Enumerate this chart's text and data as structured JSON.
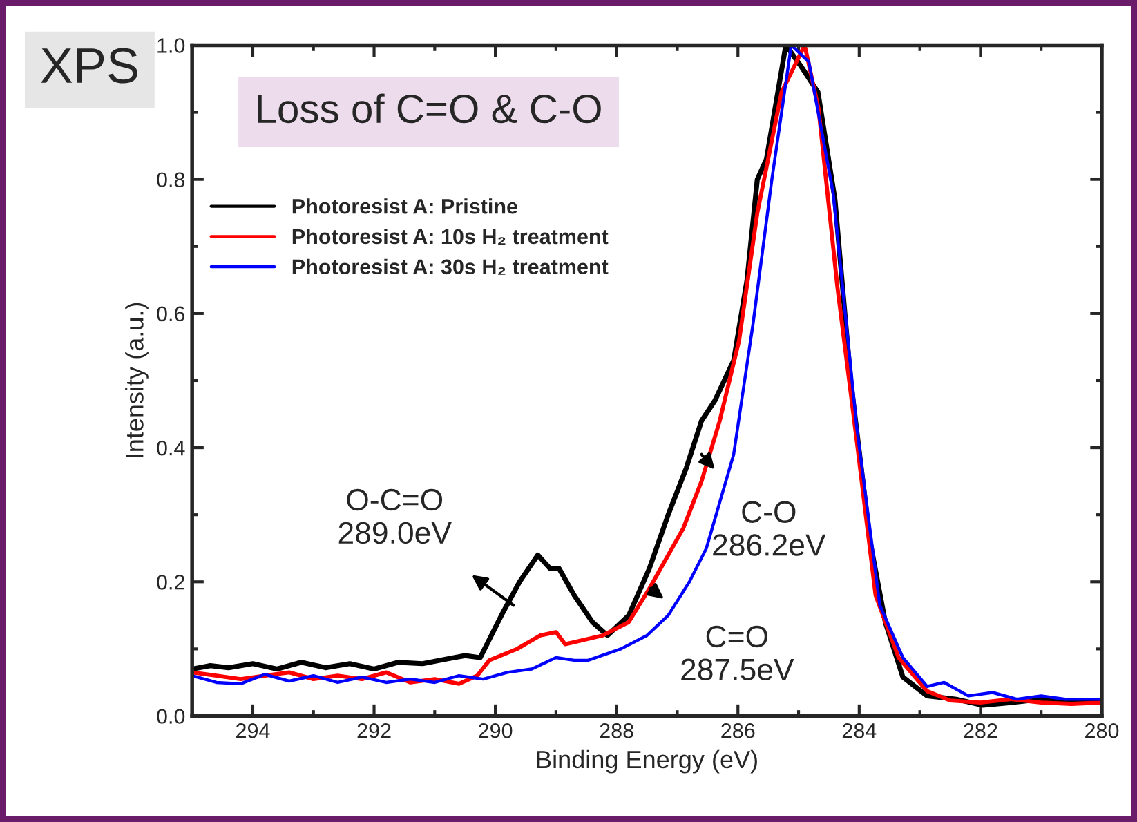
{
  "chart_data": {
    "type": "line",
    "title": "Loss of C=O & C-O",
    "xlabel": "Binding Energy (eV)",
    "ylabel": "Intensity (a.u.)",
    "annotations": [
      "XPS",
      {
        "text": "O-C=O\n289.0eV",
        "x": 289.7,
        "y": 0.165
      },
      {
        "text": "C-O\n286.2eV",
        "x": 286.6,
        "y": 0.39
      },
      {
        "text": "C=O\n287.5eV",
        "x": 287.44,
        "y": 0.19
      }
    ],
    "series": [
      {
        "name": "Photoresist A: Pristine",
        "color": "#000000",
        "x": [
          295.0,
          294.7,
          294.4,
          294.0,
          293.6,
          293.2,
          292.8,
          292.4,
          292.0,
          291.6,
          291.2,
          290.8,
          290.5,
          290.25,
          289.9,
          289.6,
          289.3,
          289.1,
          288.95,
          288.7,
          288.4,
          288.15,
          287.8,
          287.46,
          287.15,
          286.85,
          286.6,
          286.38,
          286.07,
          285.85,
          285.68,
          285.53,
          285.21,
          284.97,
          284.68,
          284.4,
          284.14,
          283.82,
          283.57,
          283.28,
          282.88,
          282.4,
          281.96,
          281.5,
          281.0,
          280.5,
          280.0
        ],
        "values": [
          0.07,
          0.075,
          0.072,
          0.078,
          0.07,
          0.08,
          0.072,
          0.078,
          0.07,
          0.08,
          0.078,
          0.085,
          0.09,
          0.087,
          0.15,
          0.2,
          0.24,
          0.22,
          0.22,
          0.18,
          0.14,
          0.12,
          0.15,
          0.22,
          0.3,
          0.37,
          0.44,
          0.47,
          0.53,
          0.65,
          0.8,
          0.83,
          1.0,
          0.97,
          0.93,
          0.77,
          0.5,
          0.26,
          0.14,
          0.058,
          0.03,
          0.025,
          0.016,
          0.02,
          0.025,
          0.02,
          0.02
        ]
      },
      {
        "name": "Photoresist A: 10s H₂ treatment",
        "color": "#ff0000",
        "x": [
          295.0,
          294.6,
          294.2,
          293.8,
          293.4,
          293.0,
          292.6,
          292.2,
          291.8,
          291.4,
          291.0,
          290.6,
          290.3,
          290.1,
          289.64,
          289.26,
          289.0,
          288.85,
          288.7,
          288.23,
          287.8,
          287.46,
          286.9,
          286.6,
          286.3,
          285.98,
          285.68,
          285.28,
          284.9,
          284.67,
          284.36,
          284.04,
          283.73,
          283.35,
          282.88,
          282.5,
          282.0,
          281.5,
          281.0,
          280.5,
          280.0
        ],
        "values": [
          0.065,
          0.06,
          0.055,
          0.06,
          0.065,
          0.055,
          0.06,
          0.055,
          0.065,
          0.05,
          0.055,
          0.048,
          0.06,
          0.083,
          0.1,
          0.12,
          0.125,
          0.107,
          0.11,
          0.12,
          0.14,
          0.19,
          0.28,
          0.35,
          0.44,
          0.56,
          0.75,
          0.93,
          1.0,
          0.905,
          0.64,
          0.41,
          0.18,
          0.087,
          0.037,
          0.023,
          0.02,
          0.025,
          0.02,
          0.018,
          0.02
        ]
      },
      {
        "name": "Photoresist A: 30s H₂ treatment",
        "color": "#0000ff",
        "x": [
          295.0,
          294.6,
          294.2,
          293.8,
          293.4,
          293.0,
          292.6,
          292.2,
          291.8,
          291.4,
          291.0,
          290.6,
          290.2,
          289.8,
          289.4,
          289.0,
          288.7,
          288.47,
          287.93,
          287.5,
          287.15,
          286.8,
          286.52,
          286.07,
          285.75,
          285.44,
          285.12,
          284.83,
          284.43,
          284.04,
          283.66,
          283.28,
          282.88,
          282.6,
          282.2,
          281.8,
          281.4,
          281.0,
          280.6,
          280.0
        ],
        "values": [
          0.06,
          0.05,
          0.048,
          0.062,
          0.052,
          0.06,
          0.05,
          0.058,
          0.05,
          0.055,
          0.05,
          0.06,
          0.055,
          0.065,
          0.07,
          0.087,
          0.083,
          0.083,
          0.1,
          0.12,
          0.15,
          0.2,
          0.25,
          0.39,
          0.585,
          0.8,
          1.0,
          0.975,
          0.78,
          0.43,
          0.165,
          0.087,
          0.044,
          0.05,
          0.03,
          0.035,
          0.025,
          0.03,
          0.025,
          0.025
        ]
      }
    ],
    "xlim": [
      295,
      280
    ],
    "xticks": [
      294,
      292,
      290,
      288,
      286,
      284,
      282,
      280
    ],
    "ylim": [
      0,
      1.0
    ],
    "yticks": [
      {
        "value": 0,
        "label": "0.0"
      },
      {
        "value": 0.2,
        "label": "0.2"
      },
      {
        "value": 0.4,
        "label": "0.4"
      },
      {
        "value": 0.6,
        "label": "0.6"
      },
      {
        "value": 0.8,
        "label": "0.8"
      },
      {
        "value": 1.0,
        "label": "1.0"
      }
    ],
    "legend": "top left",
    "grid": false,
    "marker": "none",
    "line_style": "solid"
  }
}
